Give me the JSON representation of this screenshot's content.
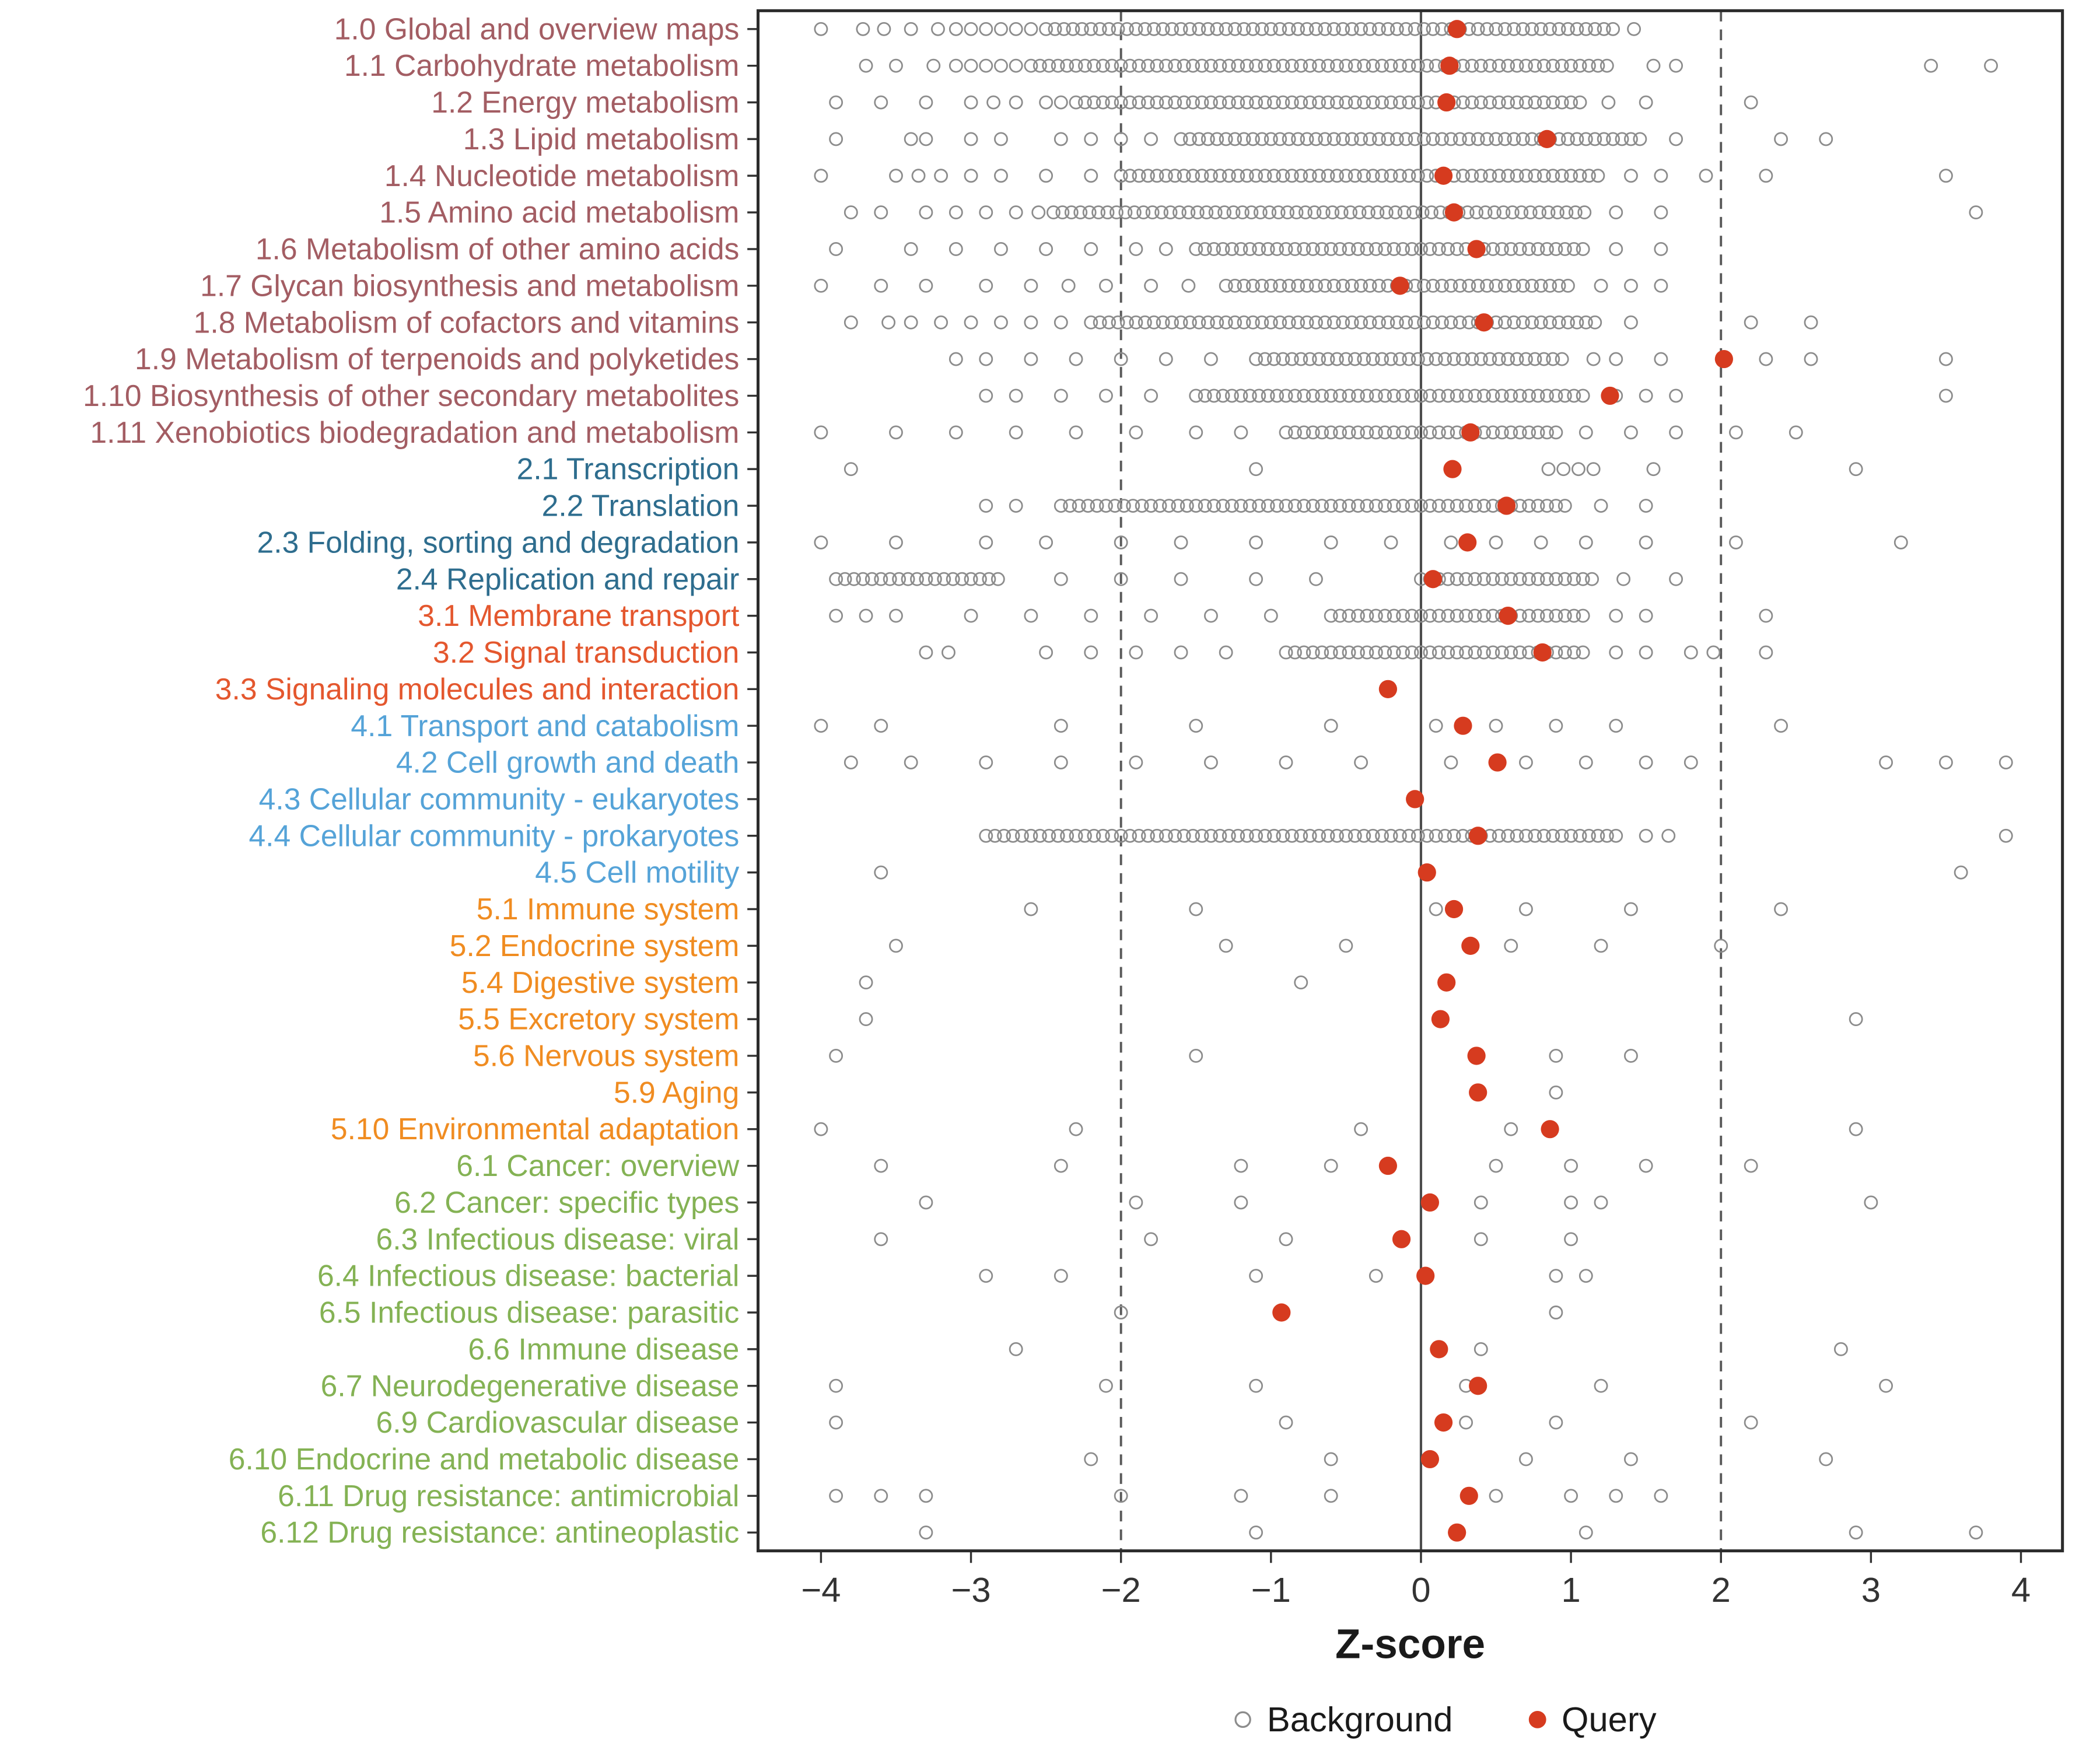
{
  "style": {
    "background_stroke": "#8c8c8c",
    "query_fill": "#d63b1f",
    "panel_border": "#2b2b2b",
    "dashed_line_color": "#595959",
    "zero_line_color": "#4d4d4d",
    "axis_text_color": "#333333",
    "title_color": "#1a1a1a"
  },
  "chart_data": {
    "type": "scatter",
    "variant": "dot-strip-plot",
    "title": "",
    "xlabel": "Z-score",
    "ylabel": "",
    "xlim": [
      -4.4,
      4.3
    ],
    "x_ticks": [
      -4,
      -3,
      -2,
      -1,
      0,
      1,
      2,
      3,
      4
    ],
    "reference_lines": {
      "solid": [
        0
      ],
      "dashed": [
        -2,
        2
      ]
    },
    "legend_position": "bottom",
    "legend": [
      {
        "label": "Background",
        "marker": "open-circle",
        "color": "#8c8c8c"
      },
      {
        "label": "Query",
        "marker": "filled-circle",
        "color": "#d63b1f"
      }
    ],
    "group_colors": {
      "1": "#a35d63",
      "2": "#2e6d8e",
      "3": "#e4572e",
      "4": "#55a3d8",
      "5": "#f08c21",
      "6": "#84b254"
    },
    "band_step": 0.06,
    "rows": [
      {
        "label": "1.0 Global and overview maps",
        "group": "1",
        "query": 0.24,
        "bands": [
          [
            -2.5,
            1.32
          ]
        ],
        "pts": [
          -4.0,
          -3.72,
          -3.58,
          -3.4,
          -3.22,
          -3.1,
          -3.0,
          -2.9,
          -2.8,
          -2.7,
          -2.6,
          1.42
        ]
      },
      {
        "label": "1.1 Carbohydrate metabolism",
        "group": "1",
        "query": 0.19,
        "bands": [
          [
            -2.6,
            1.28
          ]
        ],
        "pts": [
          -3.7,
          -3.5,
          -3.25,
          -3.1,
          -3.0,
          -2.9,
          -2.8,
          -2.7,
          1.55,
          1.7,
          3.4,
          3.8
        ]
      },
      {
        "label": "1.2 Energy metabolism",
        "group": "1",
        "query": 0.17,
        "bands": [
          [
            -2.3,
            1.1
          ]
        ],
        "pts": [
          -3.9,
          -3.6,
          -3.3,
          -3.0,
          -2.85,
          -2.7,
          -2.5,
          -2.4,
          1.25,
          1.5,
          2.2
        ]
      },
      {
        "label": "1.3 Lipid metabolism",
        "group": "1",
        "query": 0.84,
        "bands": [
          [
            -1.6,
            1.5
          ]
        ],
        "pts": [
          -3.9,
          -3.4,
          -3.3,
          -3.0,
          -2.8,
          -2.4,
          -2.2,
          -2.0,
          -1.8,
          1.7,
          2.4,
          2.7
        ]
      },
      {
        "label": "1.4 Nucleotide metabolism",
        "group": "1",
        "query": 0.15,
        "bands": [
          [
            -2.0,
            1.2
          ]
        ],
        "pts": [
          -4.0,
          -3.5,
          -3.35,
          -3.2,
          -3.0,
          -2.8,
          -2.5,
          -2.2,
          1.4,
          1.6,
          1.9,
          2.3,
          3.5
        ]
      },
      {
        "label": "1.5 Amino acid metabolism",
        "group": "1",
        "query": 0.22,
        "bands": [
          [
            -2.45,
            1.1
          ]
        ],
        "pts": [
          -3.8,
          -3.6,
          -3.3,
          -3.1,
          -2.9,
          -2.7,
          -2.55,
          1.3,
          1.6,
          3.7
        ]
      },
      {
        "label": "1.6 Metabolism of other amino acids",
        "group": "1",
        "query": 0.37,
        "bands": [
          [
            -1.5,
            1.1
          ]
        ],
        "pts": [
          -3.9,
          -3.4,
          -3.1,
          -2.8,
          -2.5,
          -2.2,
          -1.9,
          -1.7,
          1.3,
          1.6
        ]
      },
      {
        "label": "1.7 Glycan biosynthesis and metabolism",
        "group": "1",
        "query": -0.14,
        "bands": [
          [
            -1.3,
            1.0
          ]
        ],
        "pts": [
          -4.0,
          -3.6,
          -3.3,
          -2.9,
          -2.6,
          -2.35,
          -2.1,
          -1.8,
          -1.55,
          1.2,
          1.4,
          1.6
        ]
      },
      {
        "label": "1.8 Metabolism of cofactors and vitamins",
        "group": "1",
        "query": 0.42,
        "bands": [
          [
            -2.2,
            1.2
          ]
        ],
        "pts": [
          -3.8,
          -3.55,
          -3.4,
          -3.2,
          -3.0,
          -2.8,
          -2.6,
          -2.4,
          1.4,
          2.2,
          2.6
        ]
      },
      {
        "label": "1.9 Metabolism of terpenoids and polyketides",
        "group": "1",
        "query": 2.02,
        "bands": [
          [
            -1.1,
            0.95
          ]
        ],
        "pts": [
          -3.1,
          -2.9,
          -2.6,
          -2.3,
          -2.0,
          -1.7,
          -1.4,
          1.15,
          1.3,
          1.6,
          2.3,
          2.6,
          3.5
        ]
      },
      {
        "label": "1.10 Biosynthesis of other secondary metabolites",
        "group": "1",
        "query": 1.26,
        "bands": [
          [
            -1.5,
            1.12
          ]
        ],
        "pts": [
          -2.9,
          -2.7,
          -2.4,
          -2.1,
          -1.8,
          1.3,
          1.5,
          1.7,
          3.5
        ]
      },
      {
        "label": "1.11 Xenobiotics biodegradation and metabolism",
        "group": "1",
        "query": 0.33,
        "bands": [
          [
            -0.9,
            0.9
          ]
        ],
        "pts": [
          -4.0,
          -3.5,
          -3.1,
          -2.7,
          -2.3,
          -1.9,
          -1.5,
          -1.2,
          1.1,
          1.4,
          1.7,
          2.1,
          2.5
        ]
      },
      {
        "label": "2.1 Transcription",
        "group": "2",
        "query": 0.21,
        "bands": [],
        "pts": [
          -3.8,
          -1.1,
          0.85,
          0.95,
          1.05,
          1.15,
          1.55,
          2.9
        ]
      },
      {
        "label": "2.2 Translation",
        "group": "2",
        "query": 0.57,
        "bands": [
          [
            -2.4,
            1.0
          ]
        ],
        "pts": [
          -2.9,
          -2.7,
          1.2,
          1.5
        ]
      },
      {
        "label": "2.3 Folding, sorting and degradation",
        "group": "2",
        "query": 0.31,
        "bands": [],
        "pts": [
          -4.0,
          -3.5,
          -2.9,
          -2.5,
          -2.0,
          -1.6,
          -1.1,
          -0.6,
          -0.2,
          0.2,
          0.5,
          0.8,
          1.1,
          1.5,
          2.1,
          3.2
        ]
      },
      {
        "label": "2.4 Replication and repair",
        "group": "2",
        "query": 0.08,
        "bands": [
          [
            -3.9,
            -2.8
          ],
          [
            0.0,
            1.15
          ]
        ],
        "pts": [
          -2.4,
          -2.0,
          -1.6,
          -1.1,
          -0.7,
          1.35,
          1.7
        ]
      },
      {
        "label": "3.1 Membrane transport",
        "group": "3",
        "query": 0.58,
        "bands": [
          [
            -0.6,
            1.1
          ]
        ],
        "pts": [
          -3.9,
          -3.7,
          -3.5,
          -3.0,
          -2.6,
          -2.2,
          -1.8,
          -1.4,
          -1.0,
          1.3,
          1.5,
          2.3
        ]
      },
      {
        "label": "3.2 Signal transduction",
        "group": "3",
        "query": 0.81,
        "bands": [
          [
            -0.9,
            1.1
          ]
        ],
        "pts": [
          -3.3,
          -3.15,
          -2.5,
          -2.2,
          -1.9,
          -1.6,
          -1.3,
          1.3,
          1.5,
          1.8,
          1.95,
          2.3
        ]
      },
      {
        "label": "3.3 Signaling molecules and interaction",
        "group": "3",
        "query": -0.22,
        "bands": [],
        "pts": []
      },
      {
        "label": "4.1 Transport and catabolism",
        "group": "4",
        "query": 0.28,
        "bands": [],
        "pts": [
          -4.0,
          -3.6,
          -2.4,
          -1.5,
          -0.6,
          0.1,
          0.5,
          0.9,
          1.3,
          2.4
        ]
      },
      {
        "label": "4.2 Cell growth and death",
        "group": "4",
        "query": 0.51,
        "bands": [],
        "pts": [
          -3.8,
          -3.4,
          -2.9,
          -2.4,
          -1.9,
          -1.4,
          -0.9,
          -0.4,
          0.2,
          0.7,
          1.1,
          1.5,
          1.8,
          3.1,
          3.5,
          3.9
        ]
      },
      {
        "label": "4.3 Cellular community - eukaryotes",
        "group": "4",
        "query": -0.04,
        "bands": [],
        "pts": []
      },
      {
        "label": "4.4 Cellular community - prokaryotes",
        "group": "4",
        "query": 0.38,
        "bands": [
          [
            -2.9,
            1.3
          ]
        ],
        "pts": [
          1.5,
          1.65,
          3.9
        ]
      },
      {
        "label": "4.5 Cell motility",
        "group": "4",
        "query": 0.04,
        "bands": [],
        "pts": [
          -3.6,
          3.6
        ]
      },
      {
        "label": "5.1 Immune system",
        "group": "5",
        "query": 0.22,
        "bands": [],
        "pts": [
          -2.6,
          -1.5,
          0.1,
          0.7,
          1.4,
          2.4
        ]
      },
      {
        "label": "5.2 Endocrine system",
        "group": "5",
        "query": 0.33,
        "bands": [],
        "pts": [
          -3.5,
          -1.3,
          -0.5,
          0.6,
          1.2,
          2.0
        ]
      },
      {
        "label": "5.4 Digestive system",
        "group": "5",
        "query": 0.17,
        "bands": [],
        "pts": [
          -3.7,
          -0.8
        ]
      },
      {
        "label": "5.5 Excretory system",
        "group": "5",
        "query": 0.13,
        "bands": [],
        "pts": [
          -3.7,
          2.9
        ]
      },
      {
        "label": "5.6 Nervous system",
        "group": "5",
        "query": 0.37,
        "bands": [],
        "pts": [
          -3.9,
          -1.5,
          0.9,
          1.4
        ]
      },
      {
        "label": "5.9 Aging",
        "group": "5",
        "query": 0.38,
        "bands": [],
        "pts": [
          0.9
        ]
      },
      {
        "label": "5.10 Environmental adaptation",
        "group": "5",
        "query": 0.86,
        "bands": [],
        "pts": [
          -4.0,
          -2.3,
          -0.4,
          0.6,
          2.9
        ]
      },
      {
        "label": "6.1 Cancer: overview",
        "group": "6",
        "query": -0.22,
        "bands": [],
        "pts": [
          -3.6,
          -2.4,
          -1.2,
          -0.6,
          0.5,
          1.0,
          1.5,
          2.2
        ]
      },
      {
        "label": "6.2 Cancer: specific types",
        "group": "6",
        "query": 0.06,
        "bands": [],
        "pts": [
          -3.3,
          -1.9,
          -1.2,
          0.4,
          1.0,
          1.2,
          3.0
        ]
      },
      {
        "label": "6.3 Infectious disease: viral",
        "group": "6",
        "query": -0.13,
        "bands": [],
        "pts": [
          -3.6,
          -1.8,
          -0.9,
          0.4,
          1.0
        ]
      },
      {
        "label": "6.4 Infectious disease: bacterial",
        "group": "6",
        "query": 0.03,
        "bands": [],
        "pts": [
          -2.9,
          -2.4,
          -1.1,
          -0.3,
          0.9,
          1.1
        ]
      },
      {
        "label": "6.5 Infectious disease: parasitic",
        "group": "6",
        "query": -0.93,
        "bands": [],
        "pts": [
          -2.0,
          0.9
        ]
      },
      {
        "label": "6.6 Immune disease",
        "group": "6",
        "query": 0.12,
        "bands": [],
        "pts": [
          -2.7,
          0.4,
          2.8
        ]
      },
      {
        "label": "6.7 Neurodegenerative disease",
        "group": "6",
        "query": 0.38,
        "bands": [],
        "pts": [
          -3.9,
          -2.1,
          -1.1,
          0.3,
          1.2,
          3.1
        ]
      },
      {
        "label": "6.9 Cardiovascular disease",
        "group": "6",
        "query": 0.15,
        "bands": [],
        "pts": [
          -3.9,
          -0.9,
          0.3,
          0.9,
          2.2
        ]
      },
      {
        "label": "6.10 Endocrine and metabolic disease",
        "group": "6",
        "query": 0.06,
        "bands": [],
        "pts": [
          -2.2,
          -0.6,
          0.7,
          1.4,
          2.7
        ]
      },
      {
        "label": "6.11 Drug resistance: antimicrobial",
        "group": "6",
        "query": 0.32,
        "bands": [],
        "pts": [
          -3.9,
          -3.6,
          -3.3,
          -2.0,
          -1.2,
          -0.6,
          0.5,
          1.0,
          1.3,
          1.6
        ]
      },
      {
        "label": "6.12 Drug resistance: antineoplastic",
        "group": "6",
        "query": 0.24,
        "bands": [],
        "pts": [
          -3.3,
          -1.1,
          1.1,
          2.9,
          3.7
        ]
      }
    ]
  }
}
